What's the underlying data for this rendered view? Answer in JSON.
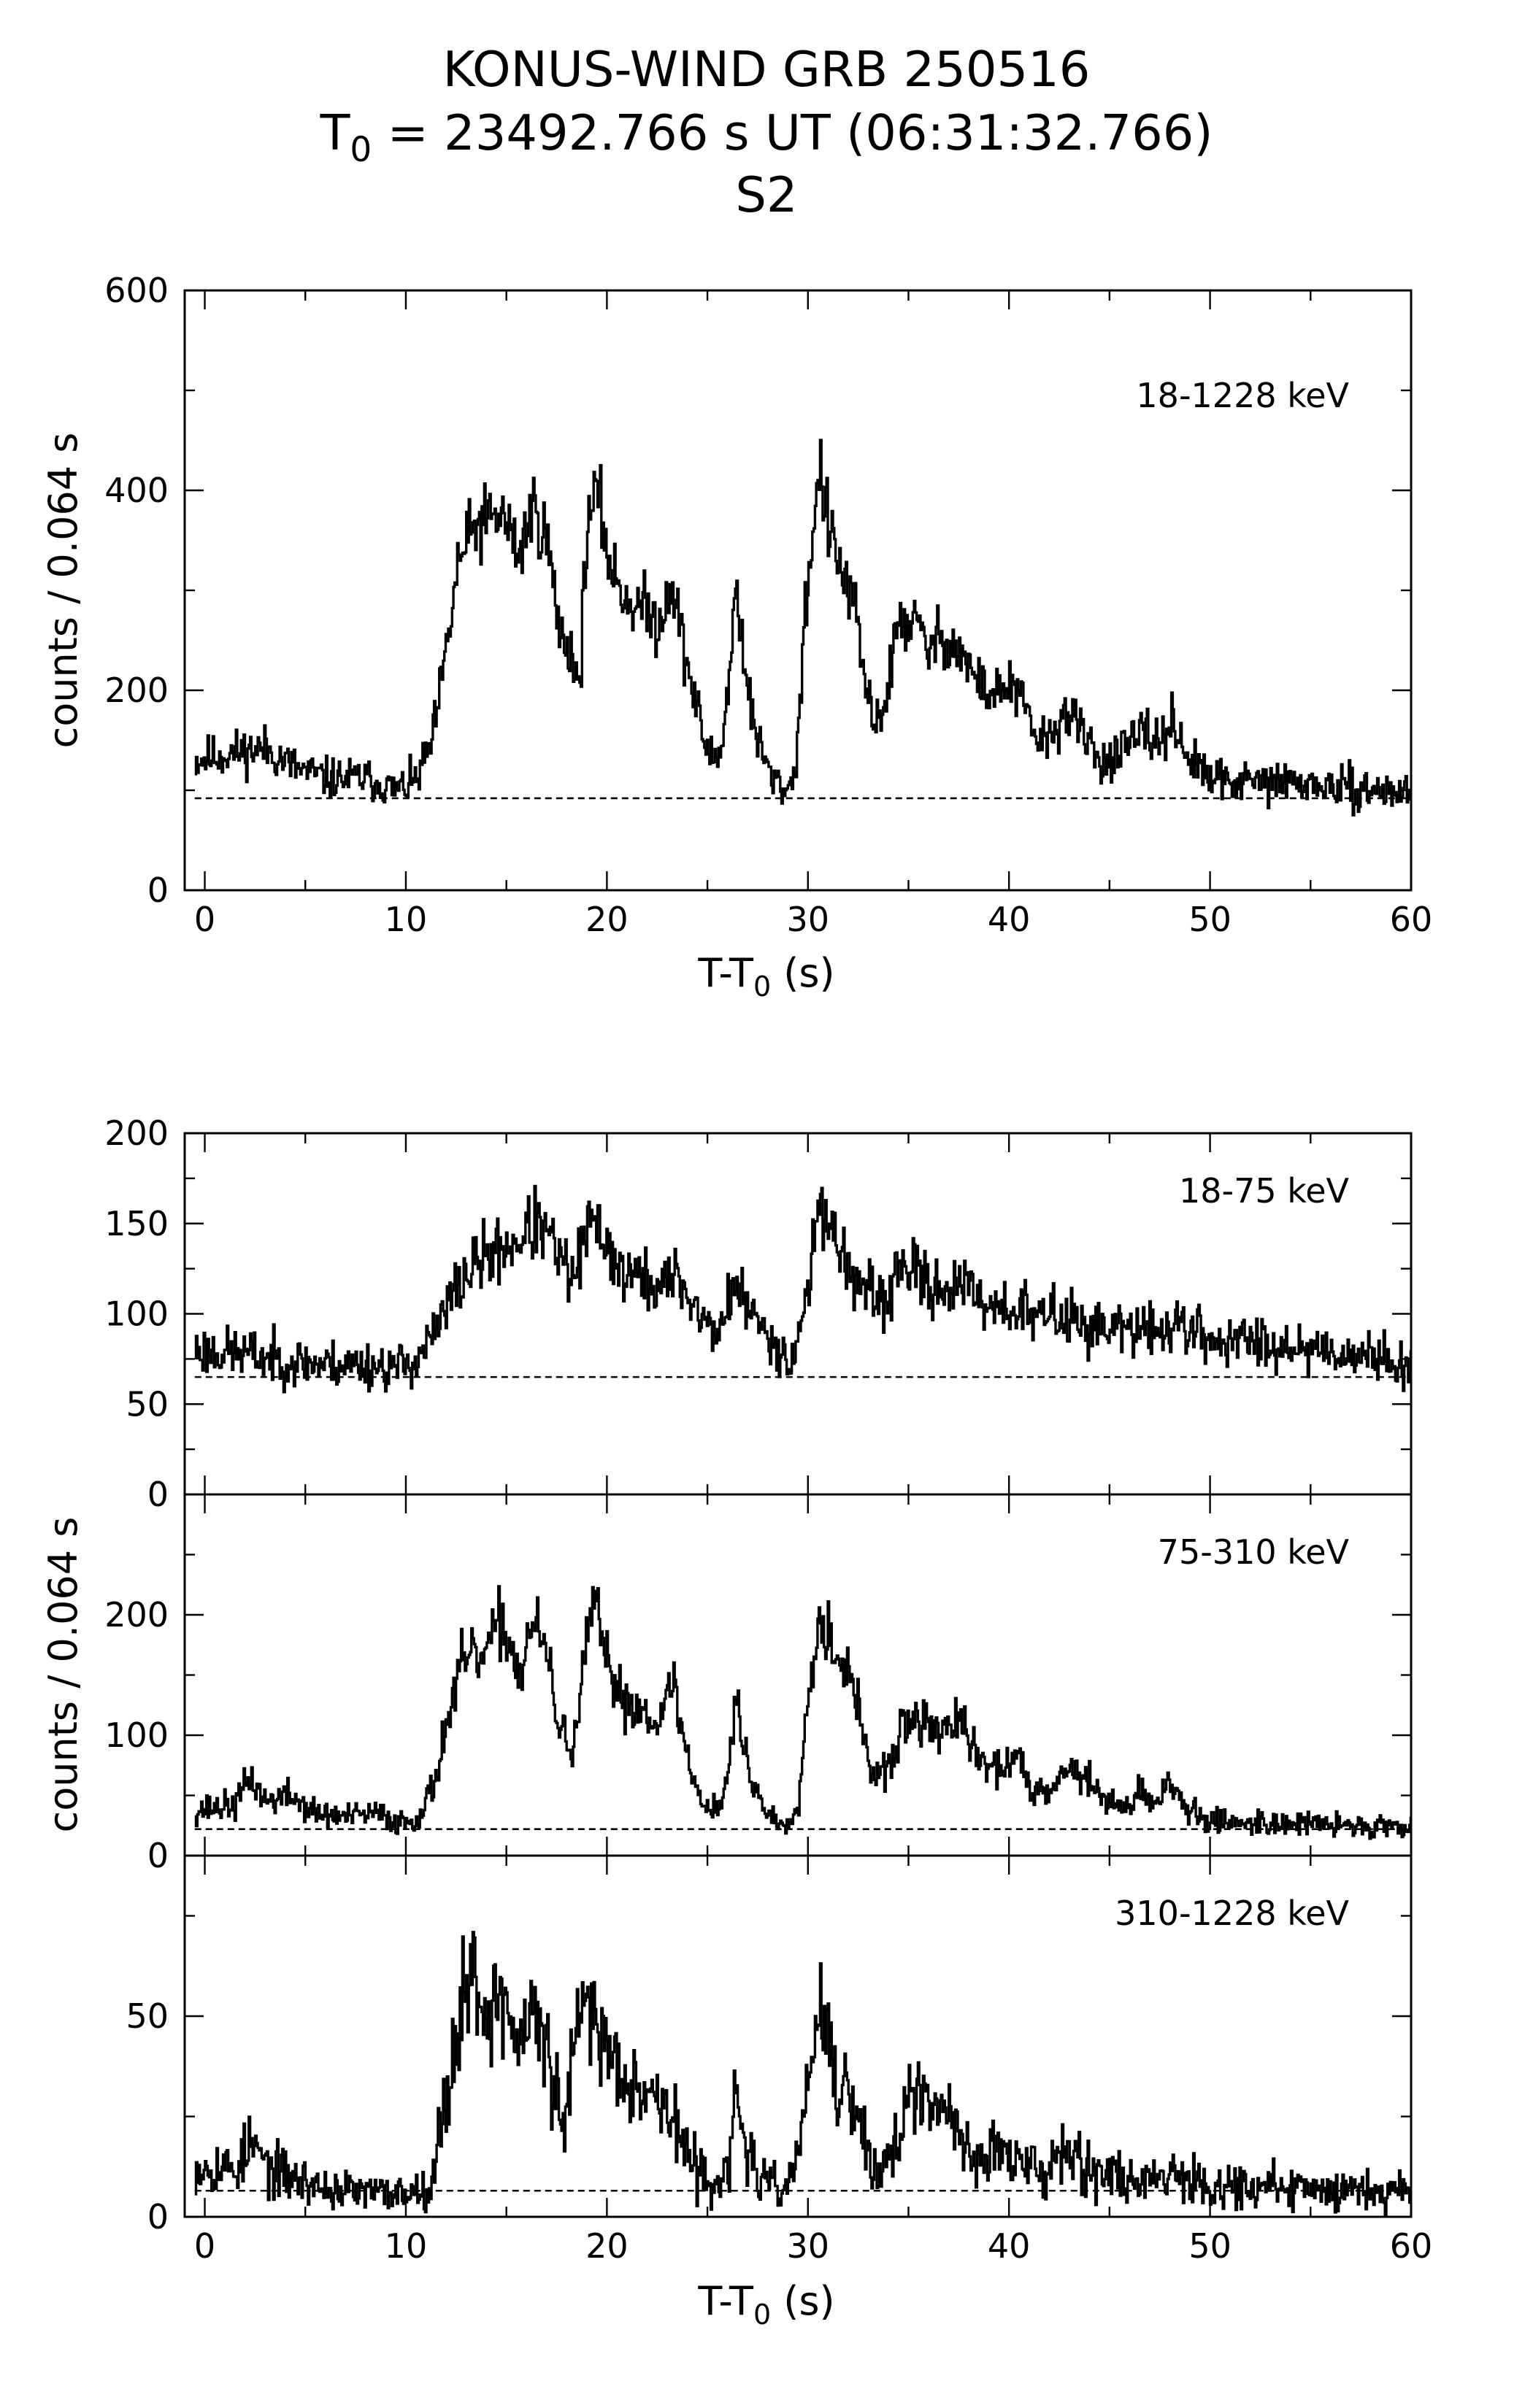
{
  "figure": {
    "title_line1": "KONUS-WIND GRB 250516",
    "title_line2_prefix": "T",
    "title_line2_sub": "0",
    "title_line2_rest": " = 23492.766 s UT (06:31:32.766)",
    "title_line3": "S2"
  },
  "chart_data": [
    {
      "type": "line",
      "id": "top",
      "band_label": "18-1228 keV",
      "ylabel": "counts / 0.064 s",
      "xlabel_main": "T-T",
      "xlabel_sub": "0",
      "xlabel_unit": " (s)",
      "xlim": [
        -1,
        60
      ],
      "ylim": [
        0,
        600
      ],
      "xticks": [
        0,
        10,
        20,
        30,
        40,
        50,
        60
      ],
      "yticks": [
        0,
        200,
        400,
        600
      ],
      "background": 92,
      "seed": 11,
      "noise": 11,
      "knots": [
        [
          -0.5,
          130
        ],
        [
          1.5,
          138
        ],
        [
          3,
          142
        ],
        [
          4.5,
          122
        ],
        [
          6,
          112
        ],
        [
          8,
          112
        ],
        [
          9.5,
          100
        ],
        [
          10.5,
          110
        ],
        [
          11.3,
          150
        ],
        [
          12,
          240
        ],
        [
          12.6,
          330
        ],
        [
          13.5,
          365
        ],
        [
          14.8,
          375
        ],
        [
          15.6,
          335
        ],
        [
          16.3,
          385
        ],
        [
          17,
          350
        ],
        [
          17.6,
          260
        ],
        [
          18.2,
          240
        ],
        [
          18.6,
          200
        ],
        [
          19,
          370
        ],
        [
          19.5,
          395
        ],
        [
          20.2,
          320
        ],
        [
          21,
          290
        ],
        [
          22,
          280
        ],
        [
          22.5,
          265
        ],
        [
          23.2,
          310
        ],
        [
          23.8,
          240
        ],
        [
          24.3,
          195
        ],
        [
          25,
          135
        ],
        [
          25.6,
          135
        ],
        [
          26.1,
          220
        ],
        [
          26.4,
          310
        ],
        [
          26.8,
          230
        ],
        [
          27.3,
          160
        ],
        [
          28.2,
          110
        ],
        [
          29,
          100
        ],
        [
          29.4,
          130
        ],
        [
          29.8,
          270
        ],
        [
          30.2,
          360
        ],
        [
          30.6,
          420
        ],
        [
          31,
          360
        ],
        [
          31.6,
          320
        ],
        [
          32.2,
          290
        ],
        [
          32.7,
          220
        ],
        [
          33.2,
          170
        ],
        [
          33.8,
          185
        ],
        [
          34.5,
          270
        ],
        [
          35.2,
          270
        ],
        [
          36,
          240
        ],
        [
          36.7,
          255
        ],
        [
          37.5,
          240
        ],
        [
          38.5,
          205
        ],
        [
          39.3,
          195
        ],
        [
          40,
          205
        ],
        [
          40.6,
          190
        ],
        [
          41.2,
          155
        ],
        [
          42,
          150
        ],
        [
          42.8,
          180
        ],
        [
          43.5,
          160
        ],
        [
          44.5,
          130
        ],
        [
          45.5,
          135
        ],
        [
          46.5,
          155
        ],
        [
          47.5,
          150
        ],
        [
          48.2,
          170
        ],
        [
          48.8,
          135
        ],
        [
          50,
          110
        ],
        [
          52,
          108
        ],
        [
          54,
          108
        ],
        [
          56,
          103
        ],
        [
          58,
          100
        ],
        [
          60,
          98
        ]
      ]
    },
    {
      "type": "line",
      "id": "p1",
      "band_label": "18-75 keV",
      "xlim": [
        -1,
        60
      ],
      "ylim": [
        0,
        200
      ],
      "xticks": [
        0,
        10,
        20,
        30,
        40,
        50,
        60
      ],
      "yticks": [
        0,
        50,
        100,
        150,
        200
      ],
      "background": 65,
      "seed": 23,
      "noise": 7,
      "knots": [
        [
          -0.5,
          80
        ],
        [
          2,
          78
        ],
        [
          4,
          74
        ],
        [
          6,
          72
        ],
        [
          8,
          72
        ],
        [
          9.5,
          70
        ],
        [
          10.5,
          75
        ],
        [
          11.5,
          90
        ],
        [
          12.5,
          115
        ],
        [
          13.5,
          128
        ],
        [
          14.5,
          135
        ],
        [
          15.5,
          140
        ],
        [
          16.5,
          150
        ],
        [
          17.3,
          138
        ],
        [
          18.2,
          118
        ],
        [
          19.2,
          150
        ],
        [
          19.8,
          145
        ],
        [
          20.5,
          125
        ],
        [
          21.5,
          120
        ],
        [
          22.5,
          115
        ],
        [
          23.5,
          120
        ],
        [
          24.3,
          105
        ],
        [
          25.2,
          90
        ],
        [
          25.8,
          95
        ],
        [
          26.3,
          120
        ],
        [
          26.8,
          105
        ],
        [
          27.5,
          95
        ],
        [
          28.3,
          85
        ],
        [
          29.2,
          72
        ],
        [
          29.6,
          95
        ],
        [
          30.2,
          130
        ],
        [
          30.6,
          165
        ],
        [
          31.2,
          145
        ],
        [
          31.8,
          130
        ],
        [
          32.6,
          115
        ],
        [
          33.3,
          105
        ],
        [
          34,
          110
        ],
        [
          34.7,
          130
        ],
        [
          35.5,
          118
        ],
        [
          36.5,
          115
        ],
        [
          37.5,
          115
        ],
        [
          38.5,
          108
        ],
        [
          39.5,
          105
        ],
        [
          40.5,
          102
        ],
        [
          41.5,
          98
        ],
        [
          42.5,
          100
        ],
        [
          43.5,
          95
        ],
        [
          45,
          92
        ],
        [
          47,
          90
        ],
        [
          48.5,
          95
        ],
        [
          50,
          85
        ],
        [
          52,
          85
        ],
        [
          54,
          83
        ],
        [
          56,
          80
        ],
        [
          58,
          76
        ],
        [
          60,
          72
        ]
      ]
    },
    {
      "type": "line",
      "id": "p2",
      "band_label": "75-310 keV",
      "ylabel": "counts / 0.064 s",
      "xlim": [
        -1,
        60
      ],
      "ylim": [
        0,
        300
      ],
      "xticks": [
        0,
        10,
        20,
        30,
        40,
        50,
        60
      ],
      "yticks": [
        0,
        100,
        200
      ],
      "background": 22,
      "seed": 37,
      "noise": 6,
      "knots": [
        [
          -0.5,
          38
        ],
        [
          1.5,
          42
        ],
        [
          2.2,
          65
        ],
        [
          3,
          45
        ],
        [
          4.2,
          50
        ],
        [
          5.5,
          35
        ],
        [
          7,
          32
        ],
        [
          8.5,
          35
        ],
        [
          9.5,
          28
        ],
        [
          10.5,
          30
        ],
        [
          11.3,
          55
        ],
        [
          12,
          110
        ],
        [
          12.8,
          160
        ],
        [
          13.8,
          165
        ],
        [
          14.8,
          195
        ],
        [
          15.6,
          150
        ],
        [
          16.3,
          195
        ],
        [
          17,
          165
        ],
        [
          17.6,
          105
        ],
        [
          18.3,
          90
        ],
        [
          18.8,
          150
        ],
        [
          19.3,
          215
        ],
        [
          19.9,
          160
        ],
        [
          20.8,
          130
        ],
        [
          21.8,
          120
        ],
        [
          22.7,
          115
        ],
        [
          23.3,
          145
        ],
        [
          23.8,
          95
        ],
        [
          24.3,
          60
        ],
        [
          25,
          40
        ],
        [
          25.6,
          40
        ],
        [
          26.1,
          80
        ],
        [
          26.4,
          130
        ],
        [
          26.8,
          90
        ],
        [
          27.3,
          55
        ],
        [
          28.2,
          30
        ],
        [
          29,
          25
        ],
        [
          29.5,
          50
        ],
        [
          30.1,
          150
        ],
        [
          30.6,
          200
        ],
        [
          31.2,
          175
        ],
        [
          31.8,
          160
        ],
        [
          32.5,
          120
        ],
        [
          33.2,
          65
        ],
        [
          34,
          70
        ],
        [
          34.7,
          110
        ],
        [
          35.5,
          110
        ],
        [
          36.5,
          105
        ],
        [
          37.5,
          110
        ],
        [
          38.5,
          80
        ],
        [
          39.3,
          70
        ],
        [
          40,
          80
        ],
        [
          40.6,
          75
        ],
        [
          41.2,
          55
        ],
        [
          42.3,
          60
        ],
        [
          43,
          75
        ],
        [
          43.8,
          65
        ],
        [
          45,
          40
        ],
        [
          46.5,
          50
        ],
        [
          47.3,
          45
        ],
        [
          48,
          65
        ],
        [
          48.7,
          40
        ],
        [
          49.5,
          30
        ],
        [
          51,
          28
        ],
        [
          54,
          27
        ],
        [
          57,
          25
        ],
        [
          60,
          24
        ]
      ]
    },
    {
      "type": "line",
      "id": "p3",
      "band_label": "310-1228 keV",
      "xlabel_main": "T-T",
      "xlabel_sub": "0",
      "xlabel_unit": " (s)",
      "xlim": [
        -1,
        60
      ],
      "ylim": [
        0,
        90
      ],
      "xticks": [
        0,
        10,
        20,
        30,
        40,
        50,
        60
      ],
      "yticks": [
        0,
        50
      ],
      "background": 6.5,
      "seed": 53,
      "noise": 3.5,
      "knots": [
        [
          -0.5,
          13
        ],
        [
          1.5,
          12
        ],
        [
          2.3,
          18
        ],
        [
          3.2,
          12
        ],
        [
          4.2,
          10
        ],
        [
          6,
          7
        ],
        [
          8,
          6
        ],
        [
          10,
          6
        ],
        [
          11.2,
          8
        ],
        [
          12,
          30
        ],
        [
          12.8,
          55
        ],
        [
          13.3,
          62
        ],
        [
          14,
          50
        ],
        [
          14.8,
          55
        ],
        [
          15.6,
          42
        ],
        [
          16.3,
          52
        ],
        [
          17,
          40
        ],
        [
          17.8,
          22
        ],
        [
          18.5,
          45
        ],
        [
          19,
          55
        ],
        [
          19.7,
          45
        ],
        [
          20.5,
          38
        ],
        [
          21.3,
          35
        ],
        [
          22,
          32
        ],
        [
          22.7,
          28
        ],
        [
          23.3,
          25
        ],
        [
          24,
          14
        ],
        [
          25,
          9
        ],
        [
          26,
          10
        ],
        [
          26.4,
          30
        ],
        [
          26.8,
          20
        ],
        [
          27.5,
          9
        ],
        [
          28.5,
          7
        ],
        [
          29.3,
          10
        ],
        [
          30,
          35
        ],
        [
          30.6,
          52
        ],
        [
          31.2,
          35
        ],
        [
          32,
          30
        ],
        [
          32.8,
          18
        ],
        [
          33.5,
          10
        ],
        [
          34.3,
          18
        ],
        [
          35,
          30
        ],
        [
          36,
          26
        ],
        [
          36.8,
          28
        ],
        [
          37.5,
          20
        ],
        [
          38.5,
          14
        ],
        [
          39.3,
          18
        ],
        [
          40,
          14
        ],
        [
          41,
          12
        ],
        [
          42,
          12
        ],
        [
          42.8,
          20
        ],
        [
          43.5,
          14
        ],
        [
          45,
          10
        ],
        [
          47,
          9
        ],
        [
          48,
          12
        ],
        [
          50,
          8
        ],
        [
          54,
          7
        ],
        [
          57,
          7
        ],
        [
          60,
          7
        ]
      ]
    }
  ]
}
